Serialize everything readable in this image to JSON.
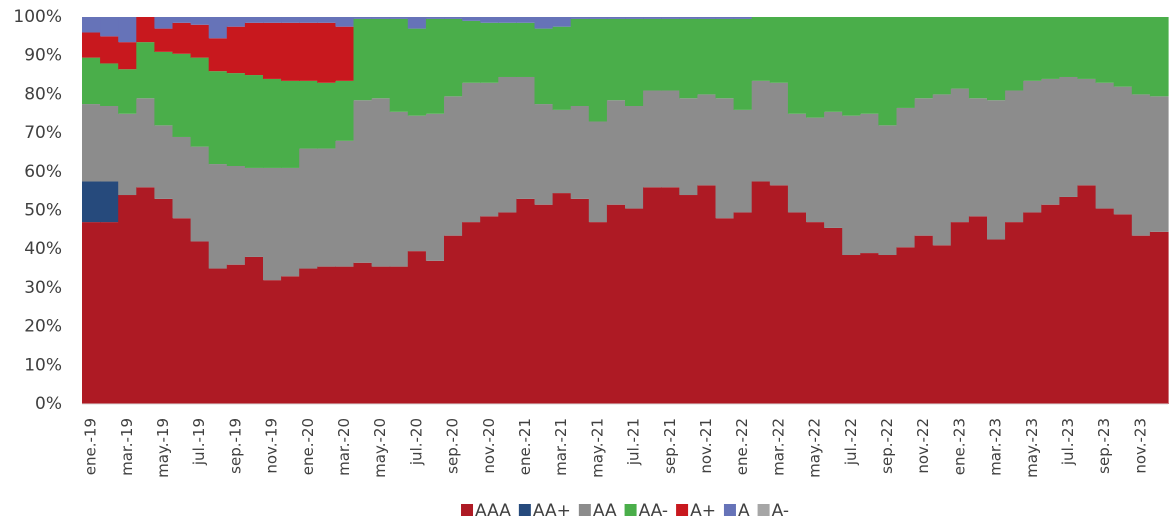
{
  "chart_data": {
    "type": "stacked_bar_100",
    "stepped": true,
    "categories": [
      "ene.-19",
      null,
      "mar.-19",
      null,
      "may.-19",
      null,
      "jul.-19",
      null,
      "sep.-19",
      null,
      "nov.-19",
      null,
      "ene.-20",
      null,
      "mar.-20",
      null,
      "may.-20",
      null,
      "jul.-20",
      null,
      "sep.-20",
      null,
      "nov.-20",
      null,
      "ene.-21",
      null,
      "mar.-21",
      null,
      "may.-21",
      null,
      "jul.-21",
      null,
      "sep.-21",
      null,
      "nov.-21",
      null,
      "ene.-22",
      null,
      "mar.-22",
      null,
      "may.-22",
      null,
      "jul.-22",
      null,
      "sep.-22",
      null,
      "nov.-22",
      null,
      "ene.-23",
      null,
      "mar.-23",
      null,
      "may.-23",
      null,
      "jul.-23",
      null,
      "sep.-23",
      null,
      "nov.-23",
      null
    ],
    "series": [
      {
        "name": "AAA",
        "color": "#ae1a24",
        "values": [
          47,
          47,
          54,
          56,
          53,
          48,
          42,
          35,
          36,
          38,
          32,
          33,
          35,
          35.5,
          35.5,
          36.5,
          35.5,
          35.5,
          39.5,
          37,
          43.5,
          47,
          48.5,
          49.5,
          53,
          51.5,
          54.5,
          53,
          47,
          51.5,
          50.5,
          56,
          56,
          54,
          56.5,
          48,
          49.5,
          57.5,
          56.5,
          49.5,
          47,
          45.5,
          38.5,
          39,
          38.5,
          40.5,
          43.5,
          41,
          47,
          48.5,
          42.5,
          47,
          49.5,
          51.5,
          53.5,
          56.5,
          50.5,
          49,
          43.5,
          44.5
        ]
      },
      {
        "name": "AA+",
        "color": "#264a7c",
        "values": [
          10.5,
          10.5,
          0,
          0,
          0,
          0,
          0,
          0,
          0,
          0,
          0,
          0,
          0,
          0,
          0,
          0,
          0,
          0,
          0,
          0,
          0,
          0,
          0,
          0,
          0,
          0,
          0,
          0,
          0,
          0,
          0,
          0,
          0,
          0,
          0,
          0,
          0,
          0,
          0,
          0,
          0,
          0,
          0,
          0,
          0,
          0,
          0,
          0,
          0,
          0,
          0,
          0,
          0,
          0,
          0,
          0,
          0,
          0,
          0,
          0
        ]
      },
      {
        "name": "AA",
        "color": "#8c8c8c",
        "values": [
          20,
          19.5,
          21,
          23,
          19,
          21,
          24.5,
          27,
          25.5,
          23,
          29,
          28,
          31,
          30.5,
          32.5,
          42,
          43.5,
          40,
          35,
          38,
          36,
          36,
          34.5,
          35,
          31.5,
          26,
          21.5,
          24,
          26,
          27,
          26.5,
          25,
          25,
          25,
          23.5,
          31,
          26.5,
          26,
          26.5,
          25.5,
          27,
          30,
          36,
          36,
          33.5,
          36,
          35.5,
          39,
          34.5,
          30.5,
          36,
          34,
          34,
          32.5,
          31,
          27.5,
          32.5,
          33,
          36.5,
          35
        ]
      },
      {
        "name": "AA-",
        "color": "#4aae4a",
        "values": [
          12,
          11,
          11.5,
          14.5,
          19,
          21.5,
          23,
          24,
          24,
          24,
          23,
          22.5,
          17.5,
          17,
          15.5,
          21,
          20.5,
          24,
          22.5,
          24.5,
          20,
          16,
          15.5,
          14,
          14,
          19.5,
          21.5,
          22.5,
          26.5,
          21,
          22.5,
          18.5,
          18.5,
          20.5,
          19.5,
          20.5,
          23.5,
          16.5,
          17,
          25,
          26,
          24.5,
          25.5,
          25,
          28,
          23.5,
          21,
          20,
          18.5,
          21,
          21.5,
          19,
          16.5,
          16,
          15.5,
          16,
          17,
          18,
          20,
          20.5
        ]
      },
      {
        "name": "A+",
        "color": "#c8181e",
        "values": [
          6.5,
          7,
          7,
          6.5,
          6,
          8,
          8.5,
          8.5,
          12,
          13.5,
          14.5,
          15,
          15,
          15.5,
          14,
          0,
          0,
          0,
          0,
          0,
          0,
          0,
          0,
          0,
          0,
          0,
          0,
          0,
          0,
          0,
          0,
          0,
          0,
          0,
          0,
          0,
          0,
          0,
          0,
          0,
          0,
          0,
          0,
          0,
          0,
          0,
          0,
          0,
          0,
          0,
          0,
          0,
          0,
          0,
          0,
          0,
          0,
          0,
          0,
          0
        ]
      },
      {
        "name": "A",
        "color": "#6673b8",
        "values": [
          4,
          5,
          6.5,
          0,
          3,
          1.5,
          2,
          5.5,
          2.5,
          1.5,
          1.5,
          1.5,
          1.5,
          1.5,
          2.5,
          0.5,
          0.5,
          0.5,
          3,
          0.5,
          0.5,
          1,
          1.5,
          1.5,
          1.5,
          3,
          2.5,
          0.5,
          0.5,
          0.5,
          0.5,
          0.5,
          0.5,
          0.5,
          0.5,
          0.5,
          0.5,
          0,
          0,
          0,
          0,
          0,
          0,
          0,
          0,
          0,
          0,
          0,
          0,
          0,
          0,
          0,
          0,
          0,
          0,
          0,
          0,
          0,
          0,
          0
        ]
      },
      {
        "name": "A-",
        "color": "#a6a6a6",
        "values": [
          0,
          0,
          0,
          0,
          0,
          0,
          0,
          0,
          0,
          0,
          0,
          0,
          0,
          0,
          0,
          0,
          0,
          0,
          0,
          0,
          0,
          0,
          0,
          0,
          0,
          0,
          0,
          0,
          0,
          0,
          0,
          0,
          0,
          0,
          0,
          0,
          0,
          0,
          0,
          0,
          0,
          0,
          0,
          0,
          0,
          0,
          0,
          0,
          0,
          0,
          0,
          0,
          0,
          0,
          0,
          0,
          0,
          0,
          0,
          0
        ]
      }
    ],
    "ylim": [
      0,
      100
    ],
    "yticks": [
      {
        "value": 0,
        "label": "0%"
      },
      {
        "value": 10,
        "label": "10%"
      },
      {
        "value": 20,
        "label": "20%"
      },
      {
        "value": 30,
        "label": "30%"
      },
      {
        "value": 40,
        "label": "40%"
      },
      {
        "value": 50,
        "label": "50%"
      },
      {
        "value": 60,
        "label": "60%"
      },
      {
        "value": 70,
        "label": "70%"
      },
      {
        "value": 80,
        "label": "80%"
      },
      {
        "value": 90,
        "label": "90%"
      },
      {
        "value": 100,
        "label": "100%"
      }
    ],
    "legend": "bottom"
  }
}
